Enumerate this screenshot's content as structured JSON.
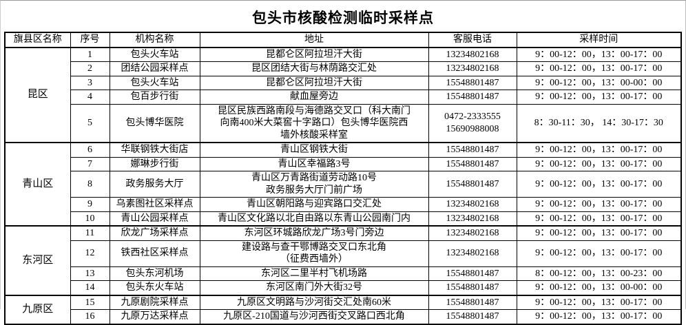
{
  "title": "包头市核酸检测临时采样点",
  "table": {
    "columns": [
      "旗县区名称",
      "序号",
      "机构名称",
      "地址",
      "客服电话",
      "采样时间"
    ],
    "groups": [
      {
        "district": "昆区",
        "rows": [
          {
            "no": "1",
            "name": "包头火车站",
            "address": "昆都仑区阿拉坦汗大街",
            "phone": "13234802168",
            "time": "9：00-12：00，13：00-17：00"
          },
          {
            "no": "2",
            "name": "团结公园采样点",
            "address": "昆区团结大街与林荫路交汇处",
            "phone": "13234802168",
            "time": "9：00-12：00，13：00-17：00"
          },
          {
            "no": "3",
            "name": "包头火车站",
            "address": "昆都仑区阿拉坦汗大街",
            "phone": "15548801487",
            "time": "9：00-12：00，13：00-00：00"
          },
          {
            "no": "4",
            "name": "包百步行街",
            "address": "献血屋旁边",
            "phone": "15548801487",
            "time": "9：00-12：00，13：00-17：00"
          },
          {
            "no": "5",
            "name": "包头博华医院",
            "address": "昆区民族西路南段与海德路交叉口（科大南门\n向南400米大菜窖十字路口）包头博华医院西\n墙外核酸采样室",
            "phone": "0472-2333555\n15690988008",
            "time": "8：30-11：30，  14：30-17：30"
          }
        ]
      },
      {
        "district": "青山区",
        "rows": [
          {
            "no": "6",
            "name": "华联钢铁大街店",
            "address": "青山区钢铁大街",
            "phone": "15548801487",
            "time": "9：00-12：00，13：00-17：00"
          },
          {
            "no": "7",
            "name": "娜琳步行街",
            "address": "青山区幸福路3号",
            "phone": "15548801487",
            "time": "9：00-12：00，13：00-17：00"
          },
          {
            "no": "8",
            "name": "政务服务大厅",
            "address": "青山区万青路街道劳动路10号\n政务服务大厅门前广场",
            "phone": "15548801487",
            "time": "9：00-12：00，13：00-17：00"
          },
          {
            "no": "9",
            "name": "乌素图社区采样点",
            "address": "青山区朝阳路与迎宾路口交汇处",
            "phone": "13234802168",
            "time": "9：00-12：00，13：00-17：00"
          },
          {
            "no": "10",
            "name": "青山公园采样点",
            "address": "青山区文化路以北自由路以东青山公园南门内",
            "phone": "13234802168",
            "time": "9：00-12：00，13：00-17：00"
          }
        ]
      },
      {
        "district": "东河区",
        "rows": [
          {
            "no": "11",
            "name": "欣龙广场采样点",
            "address": "东河区环城路欣龙广场3号门旁边",
            "phone": "13234802168",
            "time": "9：00-12：00，13：00-17：00"
          },
          {
            "no": "12",
            "name": "铁西社区采样点",
            "address": "建设路与查干鄂博路交叉口东北角\n（征费西墙外）",
            "phone": "13234802168",
            "time": "9：00-12：00，13：00-17：00"
          },
          {
            "no": "13",
            "name": "包头东河机场",
            "address": "东河区二里半村飞机场路",
            "phone": "15548801487",
            "time": "8：00-12：00，13：00-23：00"
          },
          {
            "no": "14",
            "name": "包头东火车站",
            "address": "东河区南门外大街32号",
            "phone": "15548801487",
            "time": "9：00-12：00，13：00-00：00"
          }
        ]
      },
      {
        "district": "九原区",
        "rows": [
          {
            "no": "15",
            "name": "九原剧院采样点",
            "address": "九原区文明路与沙河街交汇处南60米",
            "phone": "15548801487",
            "time": "9：00-12：00，13：00-17：00"
          },
          {
            "no": "16",
            "name": "九原万达采样点",
            "address": "九原区-210国道与沙河西街交叉路口西北角",
            "phone": "15548801487",
            "time": "9：00-12：00，13：00-17：00"
          }
        ]
      }
    ]
  }
}
